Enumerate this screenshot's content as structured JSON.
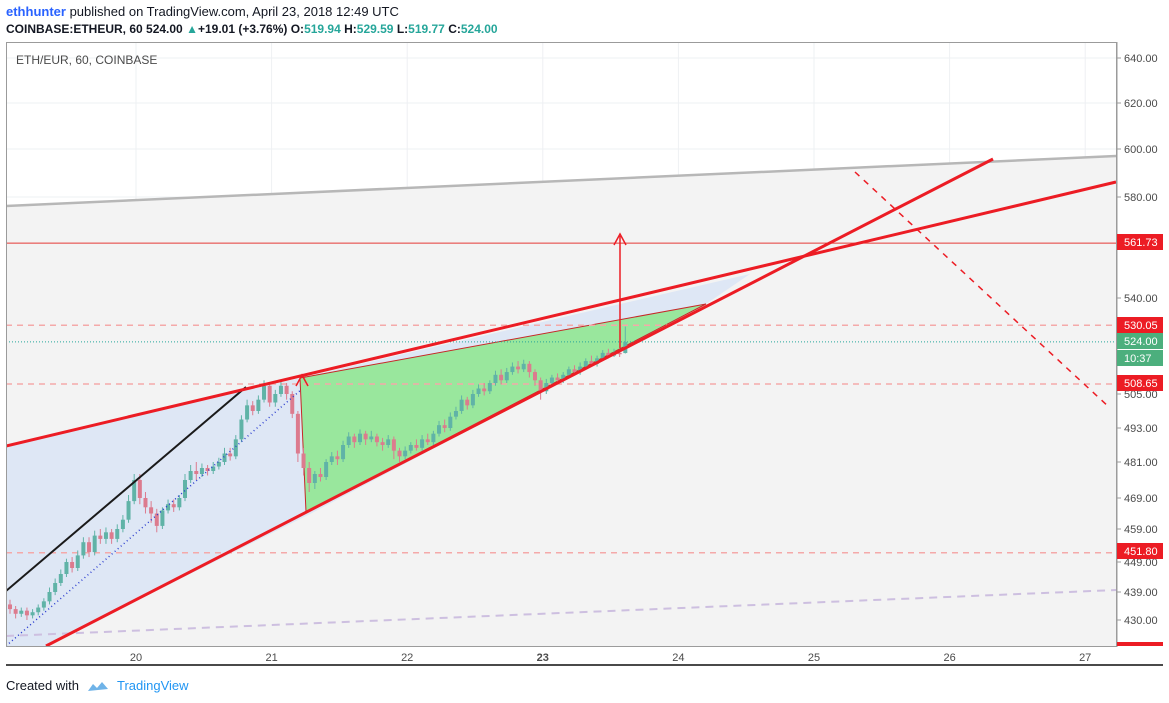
{
  "header": {
    "author": "ethhunter",
    "published_text": "published on TradingView.com, April 23, 2018 12:49 UTC",
    "symbol": "COINBASE:ETHEUR, 60",
    "last": "524.00",
    "change_arrow": "▲",
    "change": "+19.01 (+3.76%)",
    "o_label": "O:",
    "o_value": "519.94",
    "h_label": "H:",
    "h_value": "529.59",
    "l_label": "L:",
    "l_value": "519.77",
    "c_label": "C:",
    "c_value": "524.00"
  },
  "footer": {
    "created_with": "Created with",
    "brand": "TradingView"
  },
  "chart_data": {
    "type": "candlestick",
    "title": "ETH/EUR, 60, COINBASE",
    "x_ticks": [
      {
        "label": "20",
        "day": 20,
        "bold": false
      },
      {
        "label": "21",
        "day": 21,
        "bold": false
      },
      {
        "label": "22",
        "day": 22,
        "bold": false
      },
      {
        "label": "23",
        "day": 23,
        "bold": true
      },
      {
        "label": "24",
        "day": 24,
        "bold": false
      },
      {
        "label": "25",
        "day": 25,
        "bold": false
      },
      {
        "label": "26",
        "day": 26,
        "bold": false
      },
      {
        "label": "27",
        "day": 27,
        "bold": false
      }
    ],
    "y_ticks": [
      "640.00",
      "620.00",
      "600.00",
      "580.00",
      "540.00",
      "505.00",
      "493.00",
      "481.00",
      "469.00",
      "459.00",
      "449.00",
      "439.00",
      "430.00"
    ],
    "price_labels": [
      {
        "label": "561.73",
        "kind": "red"
      },
      {
        "label": "530.05",
        "kind": "red"
      },
      {
        "label": "524.00",
        "kind": "green"
      },
      {
        "label": "10:37",
        "kind": "green"
      },
      {
        "label": "508.65",
        "kind": "red"
      },
      {
        "label": "451.80",
        "kind": "red"
      }
    ],
    "current_price": 524.0,
    "horizontal_levels": {
      "solid": [
        561.73
      ],
      "dashed": [
        530.05,
        508.65,
        451.8
      ]
    },
    "candles_hourly": [
      [
        435,
        433.5,
        436.5,
        432
      ],
      [
        433.5,
        432,
        434.5,
        430.5
      ],
      [
        432,
        433,
        434,
        431
      ],
      [
        433,
        431.5,
        434,
        430
      ],
      [
        431.5,
        432.5,
        433.5,
        430.5
      ],
      [
        432.5,
        434,
        435,
        431.5
      ],
      [
        434,
        436,
        437,
        433
      ],
      [
        436,
        439,
        440.5,
        435
      ],
      [
        439,
        442,
        443.5,
        438
      ],
      [
        442,
        445,
        446.5,
        441
      ],
      [
        445,
        449,
        450,
        444
      ],
      [
        449,
        447,
        450.5,
        445.5
      ],
      [
        447,
        451,
        452.5,
        446
      ],
      [
        451,
        455,
        456.5,
        450
      ],
      [
        455,
        452,
        456.5,
        450.5
      ],
      [
        452,
        457,
        458.5,
        451
      ],
      [
        457,
        456,
        459,
        454.5
      ],
      [
        456,
        458,
        459.5,
        454.5
      ],
      [
        458,
        456,
        459,
        454.5
      ],
      [
        456,
        459,
        460.5,
        455
      ],
      [
        459,
        462,
        463.5,
        458
      ],
      [
        462,
        468,
        470,
        461
      ],
      [
        468,
        475,
        477,
        467
      ],
      [
        475,
        469,
        477,
        467
      ],
      [
        469,
        466,
        471,
        464
      ],
      [
        466,
        464,
        468,
        461
      ],
      [
        464,
        460,
        465.5,
        458
      ],
      [
        460,
        465,
        466,
        459
      ],
      [
        465,
        467,
        468.5,
        464
      ],
      [
        467,
        466,
        468.5,
        464.5
      ],
      [
        466,
        469,
        470,
        465
      ],
      [
        469,
        475,
        477,
        468
      ],
      [
        475,
        478,
        480,
        474
      ],
      [
        478,
        477,
        481,
        475
      ],
      [
        477,
        479,
        480.5,
        476
      ],
      [
        479,
        478,
        480,
        476.5
      ],
      [
        478,
        479.5,
        481,
        477
      ],
      [
        479.5,
        481,
        482.5,
        478.5
      ],
      [
        481,
        484,
        486,
        480
      ],
      [
        484,
        483,
        486,
        481.5
      ],
      [
        483,
        489,
        490.5,
        482
      ],
      [
        489,
        496,
        497.5,
        488
      ],
      [
        496,
        501,
        503,
        495
      ],
      [
        501,
        499,
        502.5,
        497.5
      ],
      [
        499,
        503,
        504.5,
        498
      ],
      [
        503,
        508,
        510,
        502
      ],
      [
        508,
        502,
        509,
        500.5
      ],
      [
        502,
        505,
        506.5,
        500.5
      ],
      [
        505,
        508,
        509.5,
        504
      ],
      [
        508,
        505,
        509,
        503
      ],
      [
        505,
        498,
        506,
        496.5
      ],
      [
        498,
        484,
        499,
        481
      ],
      [
        484,
        479,
        486,
        476.5
      ],
      [
        479,
        474,
        481,
        471
      ],
      [
        474,
        477,
        478,
        472
      ],
      [
        477,
        476,
        479,
        474.5
      ],
      [
        476,
        481,
        482,
        475
      ],
      [
        481,
        483,
        484.5,
        480
      ],
      [
        483,
        482,
        485,
        480
      ],
      [
        482,
        487,
        488.5,
        481
      ],
      [
        487,
        490,
        491.5,
        486
      ],
      [
        490,
        488,
        491,
        486
      ],
      [
        488,
        491,
        492.5,
        487
      ],
      [
        491,
        489,
        492,
        487
      ],
      [
        489,
        490,
        492,
        488
      ],
      [
        490,
        488,
        491,
        486.5
      ],
      [
        488,
        487,
        489.5,
        485
      ],
      [
        487,
        489,
        490.5,
        486
      ],
      [
        489,
        485,
        490,
        482
      ],
      [
        485,
        483,
        486,
        481
      ],
      [
        483,
        485,
        486.5,
        482
      ],
      [
        485,
        487,
        488,
        484
      ],
      [
        487,
        486,
        489,
        485
      ],
      [
        486,
        489,
        490.5,
        485
      ],
      [
        489,
        488,
        491,
        487
      ],
      [
        488,
        491,
        492,
        487
      ],
      [
        491,
        494,
        495.5,
        490
      ],
      [
        494,
        493,
        496,
        491.5
      ],
      [
        493,
        497,
        498.5,
        492
      ],
      [
        497,
        499,
        500.5,
        496
      ],
      [
        499,
        503,
        504.5,
        498
      ],
      [
        503,
        501,
        504,
        499.5
      ],
      [
        501,
        505,
        506.5,
        500
      ],
      [
        505,
        507,
        508.5,
        504
      ],
      [
        507,
        506,
        509,
        504.5
      ],
      [
        506,
        509,
        510,
        505
      ],
      [
        509,
        512,
        513.5,
        508
      ],
      [
        512,
        510,
        514,
        508.5
      ],
      [
        510,
        513,
        514.5,
        509
      ],
      [
        513,
        515,
        516.5,
        512
      ],
      [
        515,
        514,
        517,
        512.5
      ],
      [
        514,
        516,
        517.5,
        513
      ],
      [
        516,
        513,
        517,
        511
      ],
      [
        513,
        510,
        514,
        508
      ],
      [
        510,
        506,
        511,
        503
      ],
      [
        506,
        509,
        510.5,
        505
      ],
      [
        509,
        511,
        512,
        508
      ],
      [
        511,
        510,
        512.5,
        509
      ],
      [
        510,
        512,
        513,
        509
      ],
      [
        512,
        514,
        515,
        511
      ],
      [
        514,
        513,
        515.5,
        512
      ],
      [
        513,
        515,
        516.5,
        512
      ],
      [
        515,
        517,
        518,
        514
      ],
      [
        517,
        516,
        519,
        515
      ],
      [
        516,
        518,
        519,
        515
      ],
      [
        518,
        520,
        521,
        517
      ],
      [
        520,
        519,
        521.5,
        518
      ],
      [
        519,
        520,
        521.5,
        518.5
      ],
      [
        520,
        519.5,
        521,
        518.5
      ],
      [
        519.94,
        524,
        529.59,
        519.77
      ]
    ]
  }
}
